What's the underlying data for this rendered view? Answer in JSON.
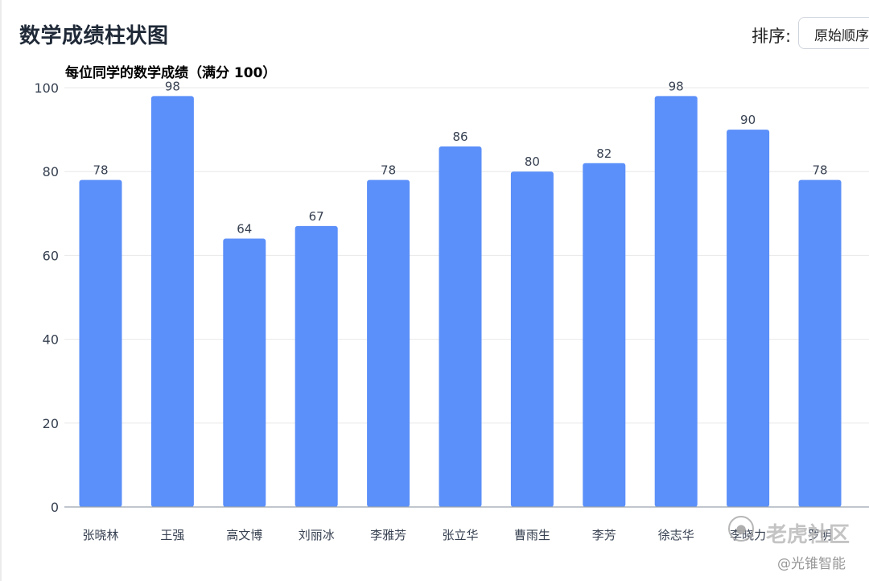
{
  "header": {
    "title": "数学成绩柱状图",
    "sort_label": "排序:",
    "sort_selected": "原始顺序"
  },
  "colors": {
    "bar": "#5b8ff9",
    "grid": "#e8e8e8",
    "axis": "#9aa3ad",
    "tick_text": "#374151",
    "data_label": "#374151"
  },
  "watermark": {
    "logo_icon": "tiger-head-icon",
    "main": "老虎社区",
    "sub": "@光锥智能"
  },
  "chart_data": {
    "type": "bar",
    "title": "每位同学的数学成绩（满分 100）",
    "xlabel": "",
    "ylabel": "",
    "ylim": [
      0,
      100
    ],
    "yticks": [
      0,
      20,
      40,
      60,
      80,
      100
    ],
    "grid": true,
    "categories": [
      "张晓林",
      "王强",
      "高文博",
      "刘丽冰",
      "李雅芳",
      "张立华",
      "曹雨生",
      "李芳",
      "徐志华",
      "李晓力",
      "罗明"
    ],
    "values": [
      78,
      98,
      64,
      67,
      78,
      86,
      80,
      82,
      98,
      90,
      78
    ]
  }
}
